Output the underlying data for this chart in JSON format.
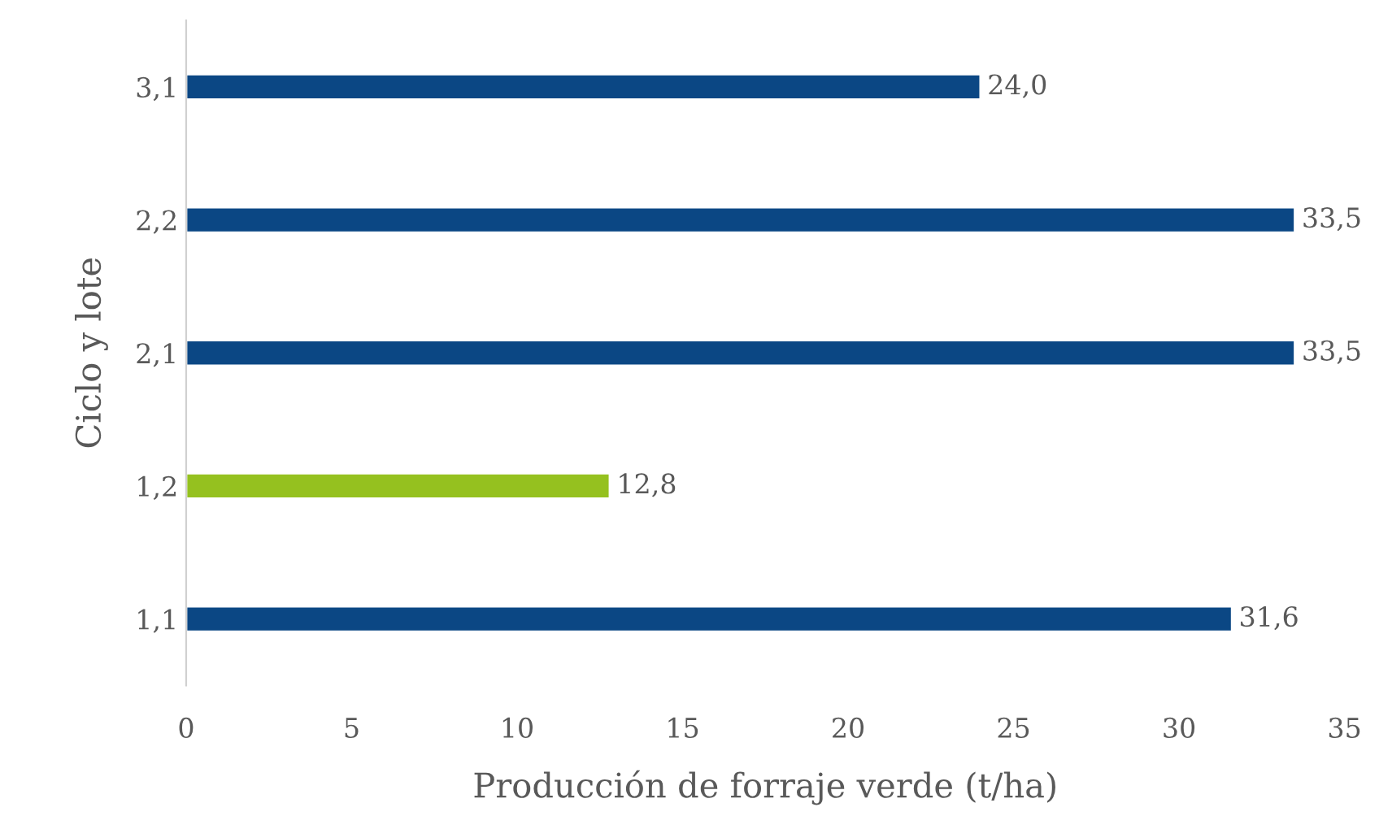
{
  "chart_data": {
    "type": "bar",
    "orientation": "horizontal",
    "xlabel": "Producción de forraje verde (t/ha)",
    "ylabel": "Ciclo y lote",
    "categories": [
      "3,1",
      "2,2",
      "2,1",
      "1,2",
      "1,1"
    ],
    "values": [
      24.0,
      33.5,
      33.5,
      12.8,
      31.6
    ],
    "colors": [
      "#0b4784",
      "#0b4784",
      "#0b4784",
      "#95c11f",
      "#0b4784"
    ],
    "value_labels": [
      "24,0",
      "33,5",
      "33,5",
      "12,8",
      "31,6"
    ],
    "xlim": [
      0,
      35
    ],
    "xticks": [
      0,
      5,
      10,
      15,
      20,
      25,
      30,
      35
    ],
    "grid": false,
    "legend": false
  }
}
